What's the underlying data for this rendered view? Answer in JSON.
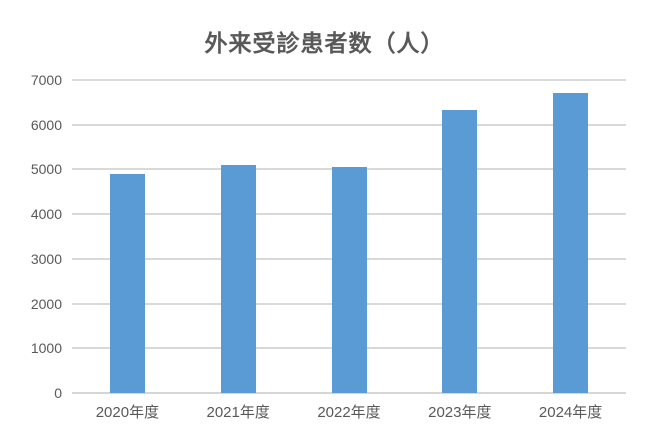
{
  "chart_data": {
    "type": "bar",
    "title": "外来受診患者数（人）",
    "categories": [
      "2020年度",
      "2021年度",
      "2022年度",
      "2023年度",
      "2024年度"
    ],
    "values": [
      4890,
      5090,
      5060,
      6320,
      6700
    ],
    "xlabel": "",
    "ylabel": "",
    "ylim": [
      0,
      7000
    ],
    "ytick_step": 1000,
    "ytick_labels": [
      "0",
      "1000",
      "2000",
      "3000",
      "4000",
      "5000",
      "6000",
      "7000"
    ],
    "grid": true,
    "legend": "none",
    "bar_color": "#5b9bd5",
    "gridline_color": "#d9d9d9",
    "axis_line_color": "#d6d6d6",
    "text_color": "#595959",
    "title_color": "#595959"
  }
}
